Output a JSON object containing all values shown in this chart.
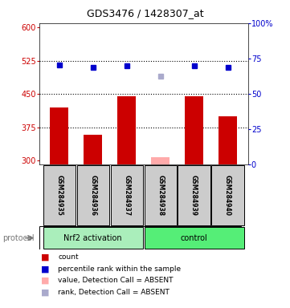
{
  "title": "GDS3476 / 1428307_at",
  "samples": [
    "GSM284935",
    "GSM284936",
    "GSM284937",
    "GSM284938",
    "GSM284939",
    "GSM284940"
  ],
  "bar_values": [
    420,
    358,
    445,
    null,
    445,
    400
  ],
  "absent_bar_value": 308,
  "absent_bar_sample_idx": 3,
  "blue_dot_values": [
    515,
    510,
    513,
    null,
    514,
    510
  ],
  "blue_dot_color": "#0000cc",
  "absent_rank_value": 490,
  "absent_rank_sample_idx": 3,
  "absent_rank_color": "#aaaacc",
  "absent_bar_color": "#ffaaaa",
  "bar_color": "#cc0000",
  "ylim_left": [
    290,
    610
  ],
  "ylim_right": [
    0,
    100
  ],
  "yticks_left": [
    300,
    375,
    450,
    525,
    600
  ],
  "yticks_right": [
    0,
    25,
    50,
    75,
    100
  ],
  "ytick_labels_right": [
    "0",
    "25",
    "50",
    "75",
    "100%"
  ],
  "hlines": [
    375,
    450,
    525
  ],
  "group1_label": "Nrf2 activation",
  "group2_label": "control",
  "group1_color": "#aaeebb",
  "group2_color": "#55ee77",
  "protocol_label": "protocol",
  "legend_items": [
    {
      "color": "#cc0000",
      "label": "count"
    },
    {
      "color": "#0000cc",
      "label": "percentile rank within the sample"
    },
    {
      "color": "#ffaaaa",
      "label": "value, Detection Call = ABSENT"
    },
    {
      "color": "#aaaacc",
      "label": "rank, Detection Call = ABSENT"
    }
  ],
  "left_tick_color": "#cc0000",
  "right_tick_color": "#0000cc",
  "bar_width": 0.55,
  "plot_bg_color": "#ffffff",
  "label_area_color": "#cccccc",
  "fig_bg_color": "#ffffff"
}
